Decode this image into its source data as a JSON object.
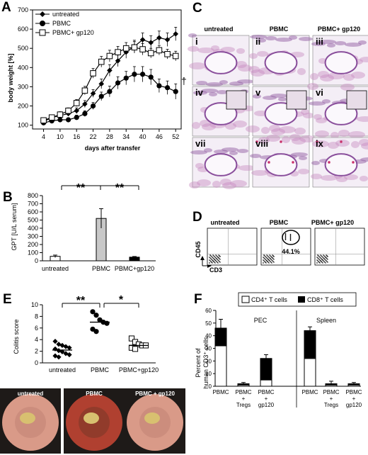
{
  "panels": {
    "A": "A",
    "B": "B",
    "C": "C",
    "D": "D",
    "E": "E",
    "F": "F"
  },
  "colors": {
    "histo_pink": "#c88cc0",
    "histo_purple": "#8a4f9c",
    "histo_red": "#c8306a",
    "endo_pink": "#d99a88",
    "endo_red": "#b04030",
    "endo_yellow": "#d8c070"
  },
  "panel_a": {
    "ylabel": "body weight [%]",
    "xlabel": "days after transfer",
    "dagger": "†",
    "legend": [
      "untreated",
      "PBMC",
      "PBMC+ gp120"
    ]
  },
  "panel_b": {
    "ylabel": "GPT [U/L serum]",
    "sig": [
      "**",
      "**"
    ]
  },
  "panel_c": {
    "headers": [
      "untreated",
      "PBMC",
      "PBMC+ gp120"
    ],
    "numerals": [
      "i",
      "ii",
      "iii",
      "iv",
      "v",
      "vi",
      "vii",
      "viii",
      "ix"
    ]
  },
  "panel_d": {
    "headers": [
      "untreated",
      "PBMC",
      "PBMC+ gp120"
    ],
    "gate_value": "44.1%",
    "ylabel": "CD45",
    "xlabel": "CD3"
  },
  "panel_e": {
    "ylabel": "Colitis score",
    "sig": [
      "**",
      "*"
    ],
    "photo_labels": [
      "untreated",
      "PBMC",
      "PBMC + gp120"
    ]
  },
  "panel_f": {
    "legend": [
      "CD4⁺ T cells",
      "CD8⁺ T cells"
    ],
    "ylabel_line1": "Percent of",
    "ylabel_line2": "human CD3⁺ cells",
    "groups": [
      "PEC",
      "Spleen"
    ]
  },
  "chart_data": [
    {
      "panel": "A",
      "type": "line",
      "xlabel": "days after transfer",
      "ylabel": "body weight [%]",
      "x": [
        4,
        7,
        10,
        13,
        16,
        19,
        22,
        25,
        28,
        31,
        34,
        37,
        40,
        43,
        46,
        49,
        52
      ],
      "xticks": [
        4,
        10,
        16,
        22,
        28,
        34,
        40,
        46,
        52
      ],
      "ylim": [
        80,
        700
      ],
      "yticks": [
        100,
        200,
        300,
        400,
        500,
        600,
        700
      ],
      "series": [
        {
          "name": "untreated",
          "marker": "diamond",
          "values": [
            118,
            140,
            150,
            160,
            175,
            210,
            265,
            315,
            385,
            435,
            480,
            510,
            545,
            530,
            555,
            545,
            575
          ],
          "err": [
            15,
            12,
            12,
            12,
            15,
            18,
            20,
            25,
            30,
            30,
            32,
            32,
            35,
            35,
            35,
            35,
            35
          ]
        },
        {
          "name": "PBMC",
          "marker": "circle",
          "values": [
            112,
            122,
            128,
            128,
            140,
            160,
            200,
            250,
            275,
            320,
            345,
            365,
            365,
            350,
            305,
            295,
            275
          ],
          "err": [
            12,
            10,
            10,
            10,
            12,
            15,
            18,
            22,
            28,
            32,
            35,
            40,
            40,
            40,
            35,
            35,
            40
          ]
        },
        {
          "name": "PBMC+ gp120",
          "marker": "square",
          "values": [
            125,
            140,
            155,
            175,
            215,
            280,
            370,
            430,
            460,
            480,
            500,
            505,
            495,
            475,
            490,
            470,
            460
          ],
          "err": [
            12,
            12,
            15,
            15,
            18,
            22,
            25,
            28,
            30,
            30,
            30,
            30,
            30,
            25,
            25,
            25,
            25
          ]
        }
      ]
    },
    {
      "panel": "B",
      "type": "bar",
      "ylabel": "GPT [U/L serum]",
      "categories": [
        "untreated",
        "PBMC",
        "PBMC+gp120"
      ],
      "values": [
        55,
        520,
        45
      ],
      "err": [
        15,
        120,
        8
      ],
      "ylim": [
        0,
        800
      ],
      "yticks": [
        0,
        100,
        200,
        300,
        400,
        500,
        600,
        700,
        800
      ]
    },
    {
      "panel": "E",
      "type": "scatter",
      "ylabel": "Colitis score",
      "categories": [
        "untreated",
        "PBMC",
        "PBMC+gp120"
      ],
      "ylim": [
        0,
        10
      ],
      "yticks": [
        0,
        2,
        4,
        6,
        8,
        10
      ],
      "series": [
        {
          "category": "untreated",
          "marker": "diamond",
          "values": [
            3.7,
            3.2,
            3.0,
            2.8,
            2.6,
            2.4,
            2.1,
            1.9,
            1.6,
            1.4,
            1.2,
            1.0
          ],
          "median": 2.2
        },
        {
          "category": "PBMC",
          "marker": "circle",
          "values": [
            8.8,
            8.2,
            7.4,
            7.0,
            6.8,
            5.8,
            5.4
          ],
          "median": 7.0
        },
        {
          "category": "PBMC+gp120",
          "marker": "square",
          "values": [
            4.2,
            3.6,
            3.2,
            3.0,
            3.0,
            2.6,
            2.4
          ],
          "median": 3.0
        }
      ]
    },
    {
      "panel": "F",
      "type": "bar",
      "ylabel": "Percent of human CD3⁺ cells",
      "categories": [
        "PBMC",
        "PBMC + Tregs",
        "PBMC + gp120",
        "PBMC",
        "PBMC + Tregs",
        "PBMC + gp120"
      ],
      "groups": [
        "PEC",
        "PEC",
        "PEC",
        "Spleen",
        "Spleen",
        "Spleen"
      ],
      "ylim": [
        0,
        60
      ],
      "yticks": [
        0,
        10,
        20,
        30,
        40,
        50,
        60
      ],
      "series": [
        {
          "name": "CD4⁺ T cells",
          "values": [
            32,
            1,
            5,
            22,
            1,
            1
          ]
        },
        {
          "name": "CD8⁺ T cells",
          "values": [
            14,
            1,
            17,
            22,
            1,
            1
          ]
        }
      ],
      "totals_err": [
        7,
        1,
        3,
        3,
        2,
        1
      ]
    }
  ]
}
